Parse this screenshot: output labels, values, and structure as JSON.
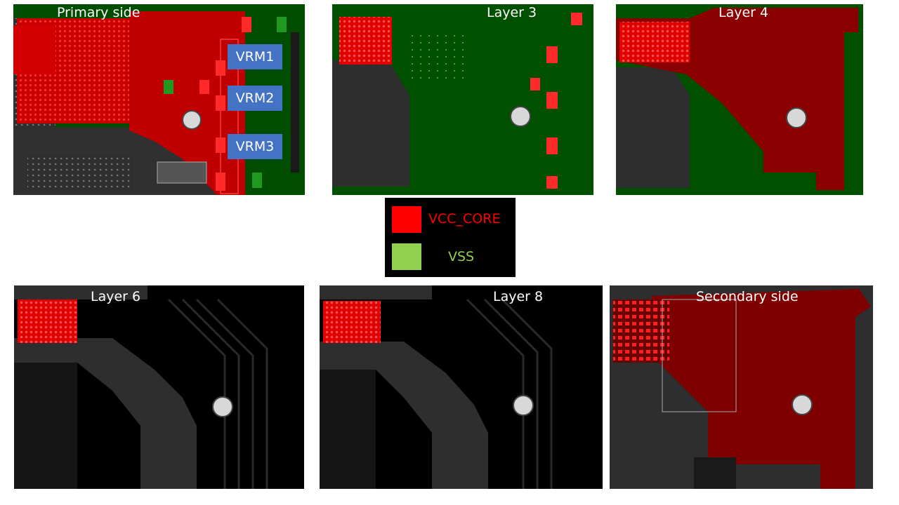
{
  "panels": [
    {
      "id": "primary",
      "title": "Primary side"
    },
    {
      "id": "layer3",
      "title": "Layer 3"
    },
    {
      "id": "layer4",
      "title": "Layer 4"
    },
    {
      "id": "layer6",
      "title": "Layer 6"
    },
    {
      "id": "layer8",
      "title": "Layer 8"
    },
    {
      "id": "secondary",
      "title": "Secondary side"
    }
  ],
  "vrm_labels": [
    "VRM1",
    "VRM2",
    "VRM3"
  ],
  "legend": {
    "items": [
      {
        "label": "VCC_CORE",
        "color": "#ff0000"
      },
      {
        "label": "VSS",
        "color": "#92d050"
      }
    ]
  },
  "colors": {
    "vss_plane": "#005000",
    "vcc_plane": "#7f0000",
    "via_red": "#ff1a1a",
    "via_green": "#33cc33",
    "substrate": "#2e2e2e",
    "background_layer": "#000000",
    "mounting_hole": "#d8d8d8"
  }
}
